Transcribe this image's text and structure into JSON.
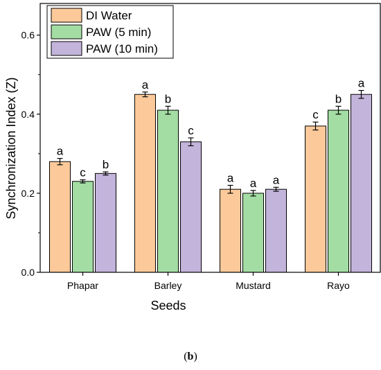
{
  "chart_data": {
    "type": "bar",
    "xlabel": "Seeds",
    "ylabel": "Synchronization Index (Z)",
    "ylim": [
      0,
      0.68
    ],
    "yticks": [
      0.0,
      0.2,
      0.4,
      0.6
    ],
    "ytick_labels": [
      "0.0",
      "0.2",
      "0.4",
      "0.6"
    ],
    "categories": [
      "Phapar",
      "Barley",
      "Mustard",
      "Rayo"
    ],
    "series": [
      {
        "name": "DI Water",
        "color": "#FBC99A",
        "values": [
          0.28,
          0.45,
          0.21,
          0.37
        ],
        "errors": [
          0.008,
          0.006,
          0.01,
          0.01
        ],
        "letters": [
          "a",
          "a",
          "a",
          "c"
        ]
      },
      {
        "name": "PAW (5 min)",
        "color": "#A3DDA3",
        "values": [
          0.23,
          0.41,
          0.2,
          0.41
        ],
        "errors": [
          0.004,
          0.01,
          0.007,
          0.01
        ],
        "letters": [
          "c",
          "b",
          "a",
          "b"
        ]
      },
      {
        "name": "PAW (10 min)",
        "color": "#C3B4DB",
        "values": [
          0.25,
          0.33,
          0.21,
          0.45
        ],
        "errors": [
          0.004,
          0.01,
          0.005,
          0.01
        ],
        "letters": [
          "b",
          "c",
          "a",
          "a"
        ]
      }
    ],
    "legend_position": "top-left",
    "grid": false
  },
  "caption": {
    "open": "(",
    "label": "b",
    "close": ")"
  }
}
